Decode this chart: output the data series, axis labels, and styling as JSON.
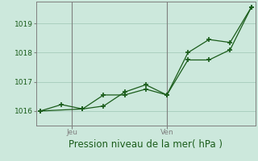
{
  "title": "Pression niveau de la mer( hPa )",
  "background_color": "#cce8dc",
  "grid_color": "#aacfbf",
  "line_color": "#1a5c1a",
  "ylim": [
    1015.5,
    1019.75
  ],
  "yticks": [
    1016,
    1017,
    1018,
    1019
  ],
  "xlim": [
    -0.2,
    10.2
  ],
  "line1_x": [
    0,
    1,
    2,
    3,
    4,
    5,
    6,
    7,
    8,
    9,
    10
  ],
  "line1_y": [
    1016.0,
    1016.22,
    1016.07,
    1016.55,
    1016.55,
    1016.75,
    1016.55,
    1017.75,
    1017.75,
    1018.1,
    1019.55
  ],
  "line2_x": [
    0,
    2,
    3,
    4,
    5,
    6,
    7,
    8,
    9,
    10
  ],
  "line2_y": [
    1016.0,
    1016.07,
    1016.17,
    1016.65,
    1016.9,
    1016.55,
    1018.0,
    1018.45,
    1018.35,
    1019.55
  ],
  "jeu_x": 1.5,
  "ven_x": 6.0,
  "tick_fontsize": 6.5,
  "xlabel_fontsize": 8.5
}
